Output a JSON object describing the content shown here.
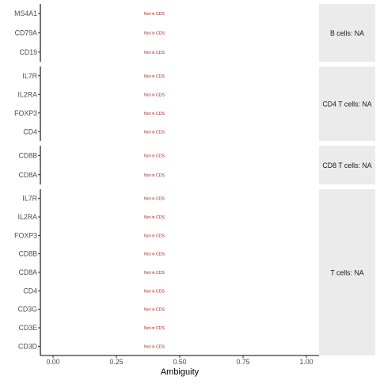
{
  "chart_data": {
    "type": "dot",
    "xlabel": "Ambiguity",
    "xlim": [
      -0.05,
      1.05
    ],
    "xticks": [
      "0.00",
      "0.25",
      "0.50",
      "0.75",
      "1.00"
    ],
    "xtick_values": [
      0,
      0.25,
      0.5,
      0.75,
      1.0
    ],
    "annotation_x": 0.5,
    "panels": [
      {
        "strip": "B cells: NA",
        "genes": [
          "MS4A1",
          "CD79A",
          "CD19"
        ],
        "annotations": [
          "Not in CDS",
          "Not in CDS",
          "Not in CDS"
        ]
      },
      {
        "strip": "CD4 T cells: NA",
        "genes": [
          "IL7R",
          "IL2RA",
          "FOXP3",
          "CD4"
        ],
        "annotations": [
          "Not in CDS",
          "Not in CDS",
          "Not in CDS",
          "Not in CDS"
        ]
      },
      {
        "strip": "CD8 T cells: NA",
        "genes": [
          "CD8B",
          "CD8A"
        ],
        "annotations": [
          "Not in CDS",
          "Not in CDS"
        ]
      },
      {
        "strip": "T cells: NA",
        "genes": [
          "IL7R",
          "IL2RA",
          "FOXP3",
          "CD8B",
          "CD8A",
          "CD4",
          "CD3G",
          "CD3E",
          "CD3D"
        ],
        "annotations": [
          "Not in CDS",
          "Not in CDS",
          "Not in CDS",
          "Not in CDS",
          "Not in CDS",
          "Not in CDS",
          "Not in CDS",
          "Not in CDS",
          "Not in CDS"
        ]
      }
    ],
    "colors": {
      "annotation": "#9b1c1c",
      "strip_bg": "#ebebeb",
      "axis": "#000000",
      "tick_label": "#4d4d4d",
      "title": "#000000"
    },
    "grid": false,
    "legend": "none"
  }
}
